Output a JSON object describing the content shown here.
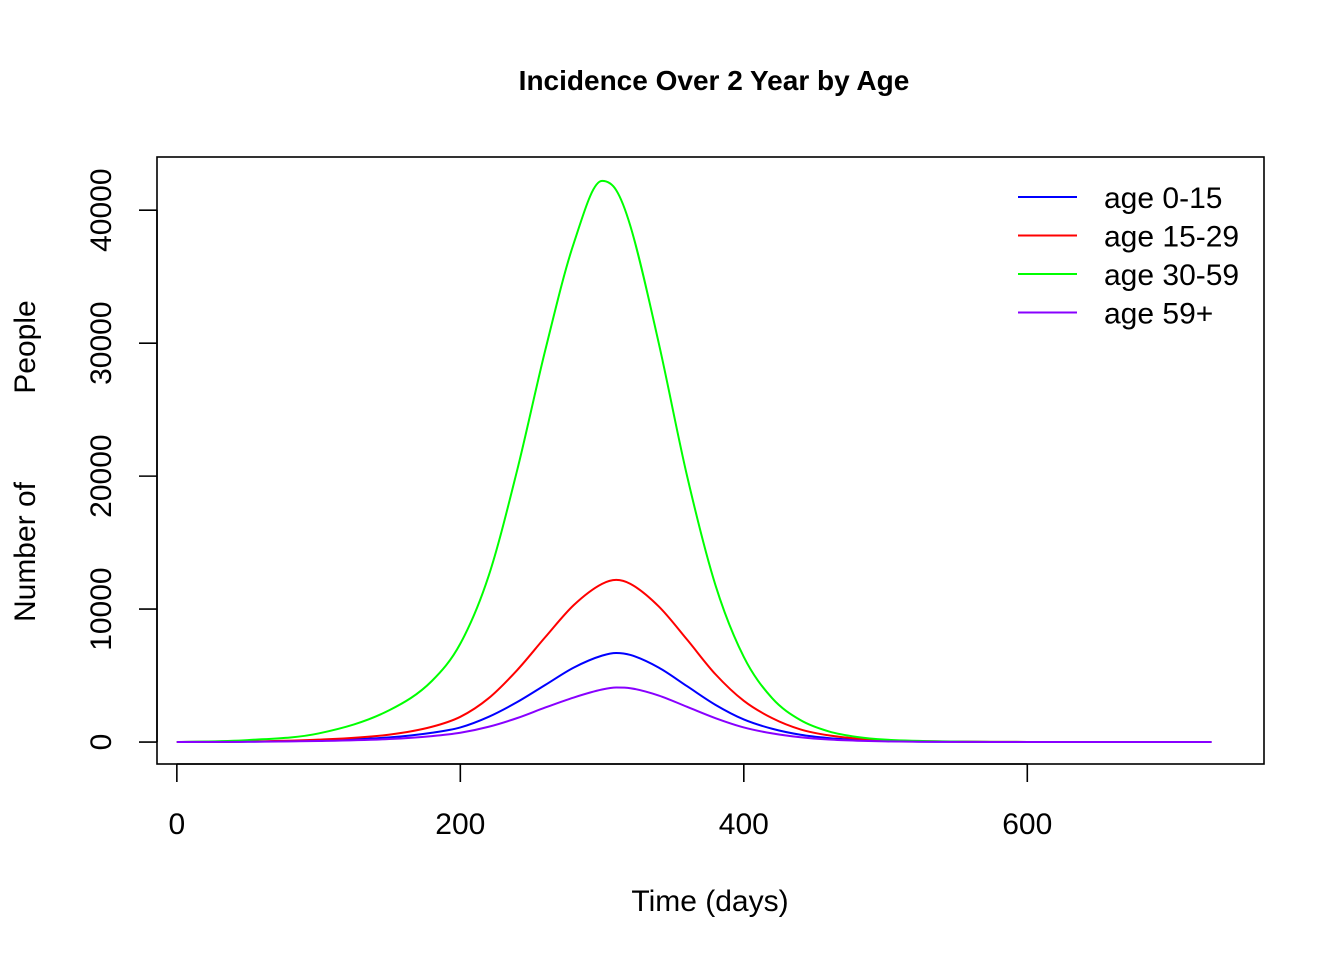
{
  "chart_data": {
    "type": "line",
    "title": "Incidence Over 2 Year by Age",
    "xlabel": "Time (days)",
    "ylabel_parts": [
      "Number of",
      "People"
    ],
    "xlim": [
      -14,
      767
    ],
    "ylim": [
      -1650,
      44000
    ],
    "xticks": [
      0,
      200,
      400,
      600
    ],
    "yticks": [
      0,
      10000,
      20000,
      30000,
      40000
    ],
    "grid": false,
    "legend_position": "top-right",
    "x": [
      0,
      50,
      100,
      150,
      180,
      200,
      220,
      240,
      260,
      280,
      300,
      310,
      320,
      340,
      360,
      380,
      400,
      420,
      440,
      460,
      480,
      500,
      550,
      600,
      650,
      730
    ],
    "series": [
      {
        "name": "age 0-15",
        "color": "#0000FF",
        "values": [
          0,
          30,
          120,
          350,
          700,
          1100,
          1900,
          3000,
          4300,
          5600,
          6500,
          6700,
          6550,
          5600,
          4200,
          2800,
          1700,
          1000,
          550,
          300,
          160,
          80,
          20,
          5,
          1,
          0
        ]
      },
      {
        "name": "age 15-29",
        "color": "#FF0000",
        "values": [
          0,
          40,
          180,
          560,
          1150,
          1900,
          3300,
          5400,
          7900,
          10300,
          11900,
          12200,
          11900,
          10200,
          7700,
          5100,
          3100,
          1800,
          950,
          500,
          260,
          130,
          35,
          8,
          2,
          0
        ]
      },
      {
        "name": "age 30-59",
        "color": "#00FF00",
        "values": [
          0,
          150,
          650,
          2400,
          4600,
          7400,
          12500,
          20400,
          29500,
          37500,
          42200,
          41500,
          38800,
          30000,
          20000,
          11800,
          6400,
          3300,
          1650,
          800,
          380,
          180,
          40,
          8,
          2,
          0
        ]
      },
      {
        "name": "age 59+",
        "color": "#8800FF",
        "values": [
          0,
          20,
          80,
          230,
          450,
          700,
          1150,
          1800,
          2600,
          3350,
          3950,
          4100,
          4050,
          3500,
          2650,
          1800,
          1100,
          650,
          360,
          190,
          100,
          50,
          12,
          3,
          1,
          0
        ]
      }
    ]
  }
}
